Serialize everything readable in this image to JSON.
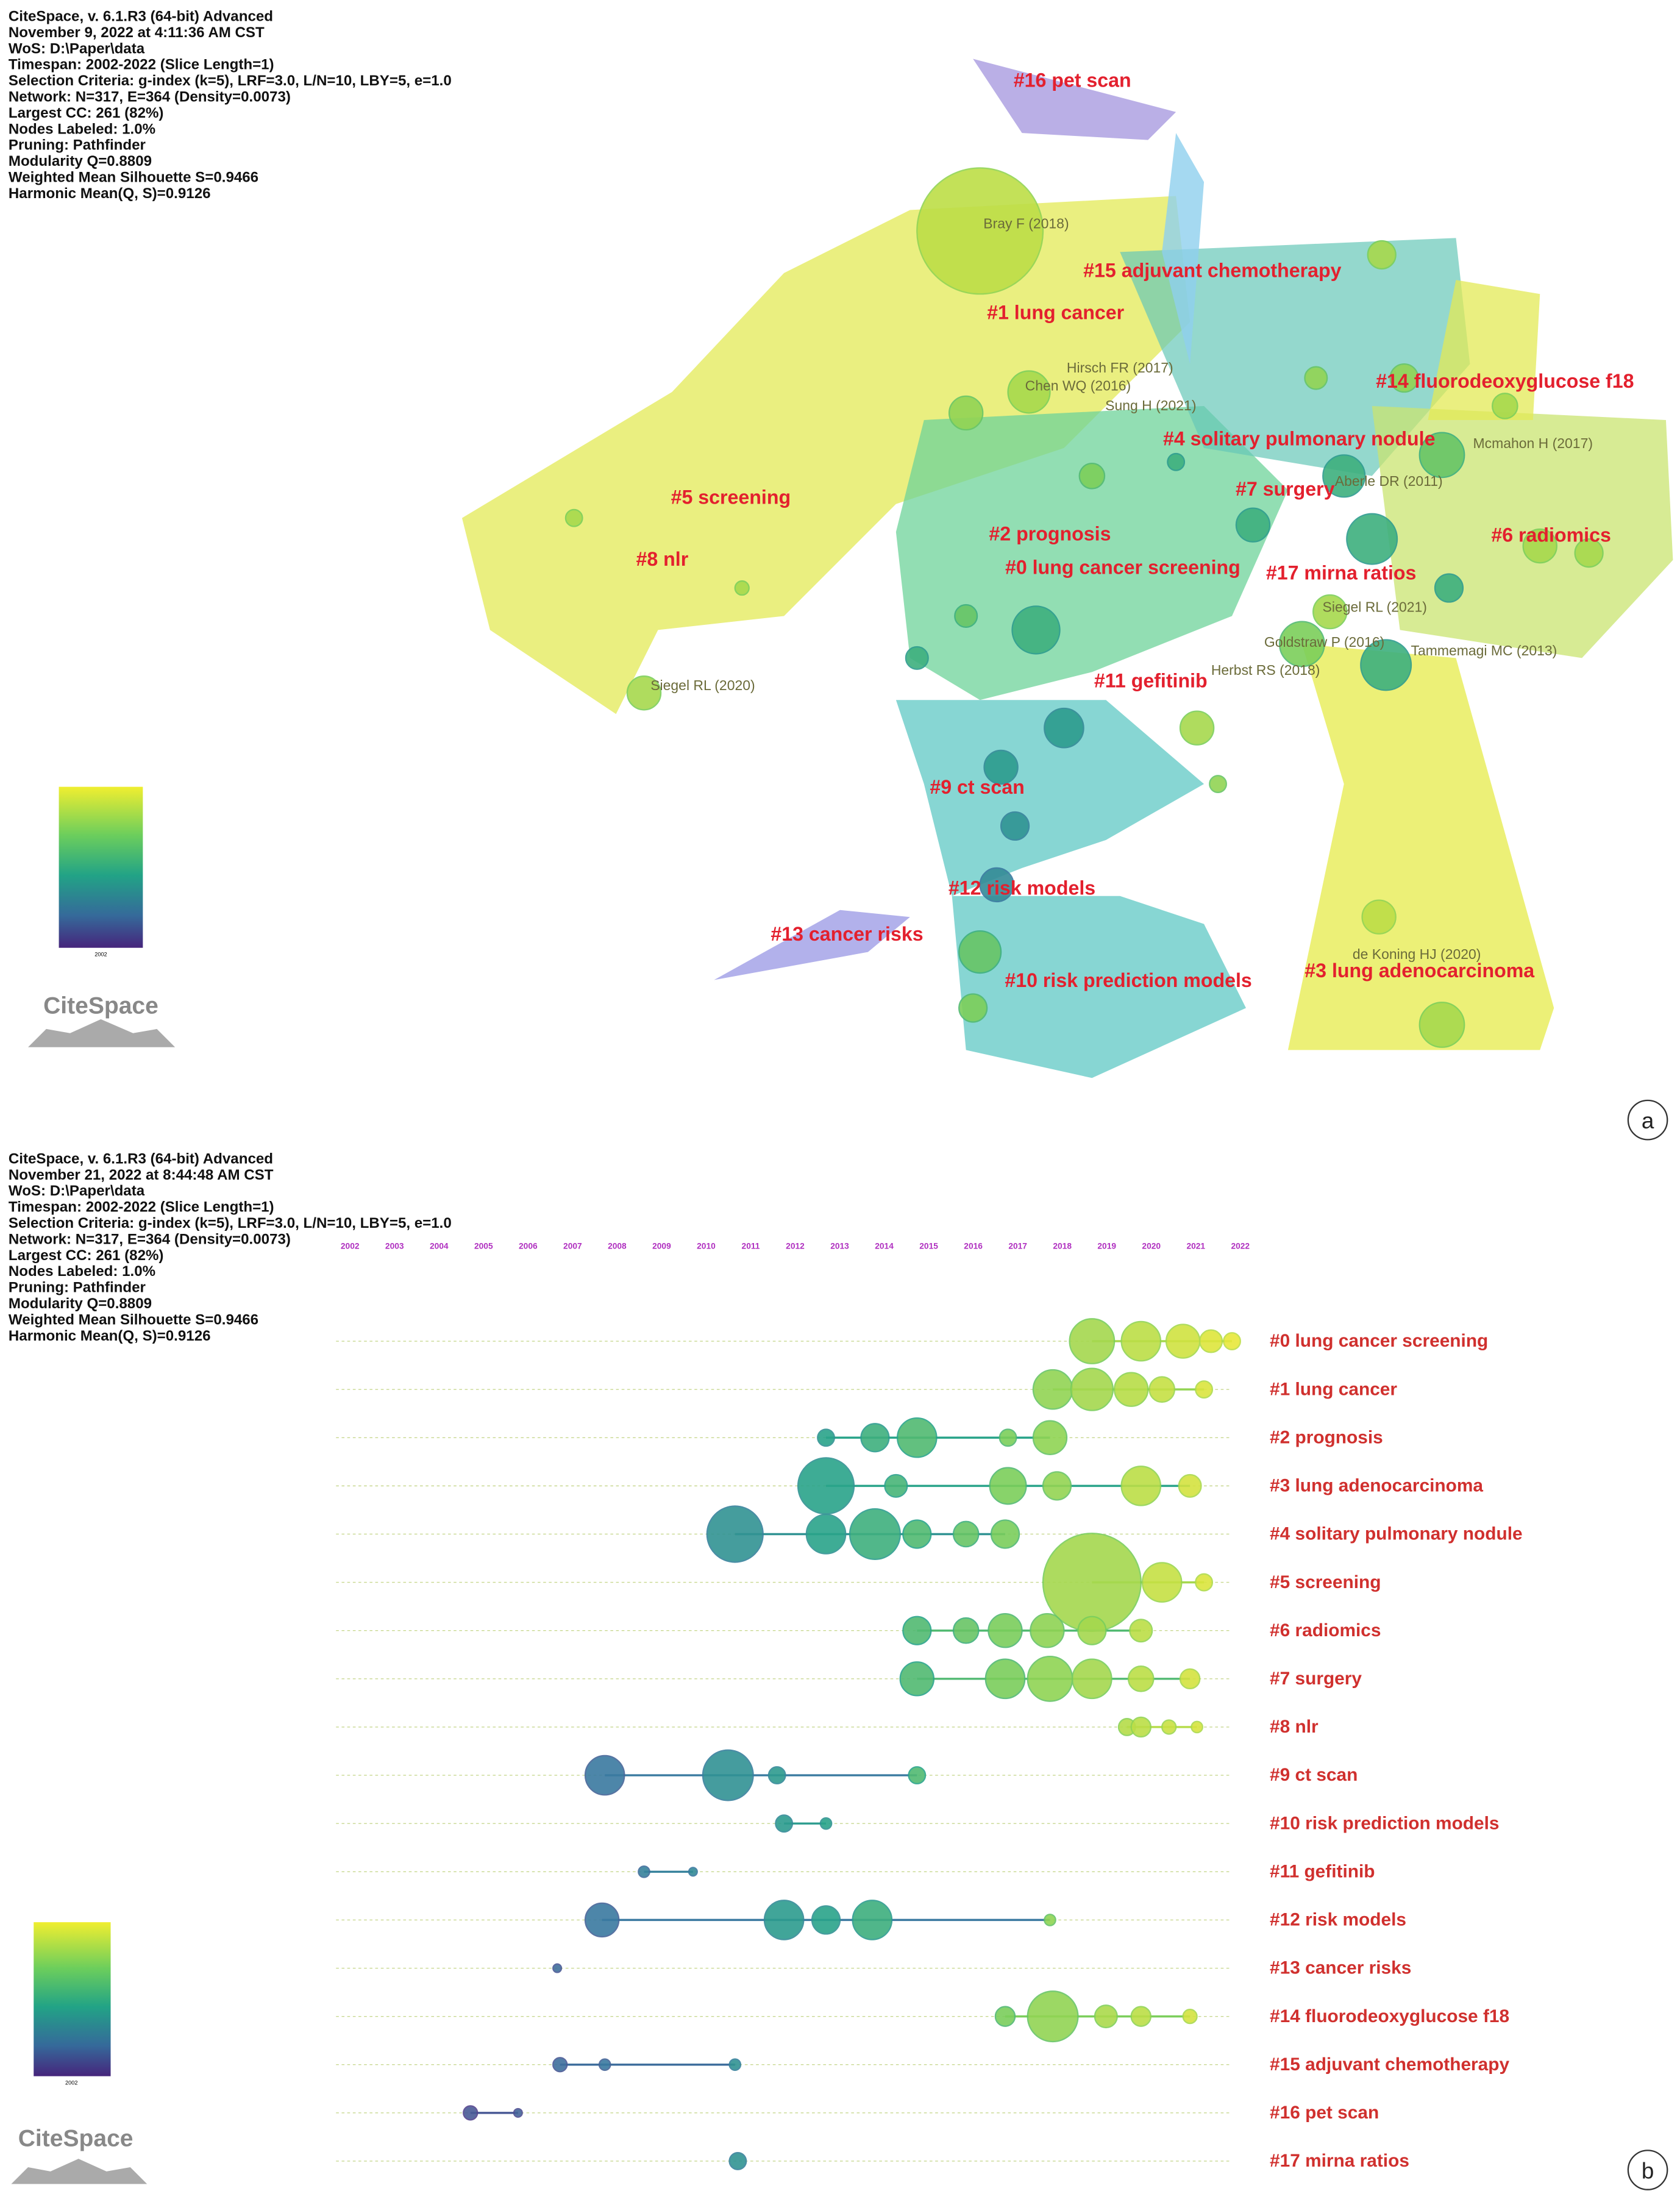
{
  "panel_a": {
    "header": [
      "CiteSpace, v. 6.1.R3 (64-bit) Advanced",
      "November 9, 2022 at 4:11:36 AM CST",
      "WoS: D:\\Paper\\data",
      "Timespan: 2002-2022 (Slice Length=1)",
      "Selection Criteria: g-index (k=5), LRF=3.0, L/N=10, LBY=5, e=1.0",
      "Network: N=317, E=364 (Density=0.0073)",
      "Largest CC: 261 (82%)",
      "Nodes Labeled: 1.0%",
      "Pruning: Pathfinder",
      "Modularity Q=0.8809",
      "Weighted Mean Silhouette S=0.9466",
      "Harmonic Mean(Q, S)=0.9126"
    ],
    "clusters": [
      "#16 pet scan",
      "#15 adjuvant chemotherapy",
      "#1 lung cancer",
      "#14 fluorodeoxyglucose f18",
      "#4 solitary pulmonary nodule",
      "#5 screening",
      "#7 surgery",
      "#2 prognosis",
      "#6 radiomics",
      "#8 nlr",
      "#0 lung cancer screening",
      "#17 mirna ratios",
      "#11 gefitinib",
      "#9 ct scan",
      "#12 risk models",
      "#13 cancer risks",
      "#10 risk prediction models",
      "#3 lung adenocarcinoma"
    ],
    "references": [
      "Bray F (2018)",
      "Hirsch FR (2017)",
      "Chen WQ (2016)",
      "Sung H (2021)",
      "Mcmahon H (2017)",
      "Aberle DR (2011)",
      "Siegel RL (2021)",
      "Goldstraw P (2016)",
      "Tammemagi MC (2013)",
      "Herbst RS (2018)",
      "Siegel RL (2020)",
      "de Koning HJ (2020)"
    ],
    "legend_min": "2002",
    "logo": "CiteSpace",
    "panel_letter": "a"
  },
  "panel_b": {
    "header": [
      "CiteSpace, v. 6.1.R3 (64-bit) Advanced",
      "November 21, 2022 at 8:44:48 AM CST",
      "WoS: D:\\Paper\\data",
      "Timespan: 2002-2022 (Slice Length=1)",
      "Selection Criteria: g-index (k=5), LRF=3.0, L/N=10, LBY=5, e=1.0",
      "Network: N=317, E=364 (Density=0.0073)",
      "Largest CC: 261 (82%)",
      "Nodes Labeled: 1.0%",
      "Pruning: Pathfinder",
      "Modularity Q=0.8809",
      "Weighted Mean Silhouette S=0.9466",
      "Harmonic Mean(Q, S)=0.9126"
    ],
    "years": [
      "2002",
      "2003",
      "2004",
      "2005",
      "2006",
      "2007",
      "2008",
      "2009",
      "2010",
      "2011",
      "2012",
      "2013",
      "2014",
      "2015",
      "2016",
      "2017",
      "2018",
      "2019",
      "2020",
      "2021",
      "2022"
    ],
    "clusters": [
      "#0 lung cancer screening",
      "#1 lung cancer",
      "#2 prognosis",
      "#3 lung adenocarcinoma",
      "#4 solitary pulmonary nodule",
      "#5 screening",
      "#6 radiomics",
      "#7 surgery",
      "#8 nlr",
      "#9 ct scan",
      "#10 risk prediction models",
      "#11 gefitinib",
      "#12 risk models",
      "#13 cancer risks",
      "#14 fluorodeoxyglucose f18",
      "#15 adjuvant chemotherapy",
      "#16 pet scan",
      "#17 mirna ratios"
    ],
    "legend_min": "2002",
    "logo": "CiteSpace",
    "panel_letter": "b"
  }
}
